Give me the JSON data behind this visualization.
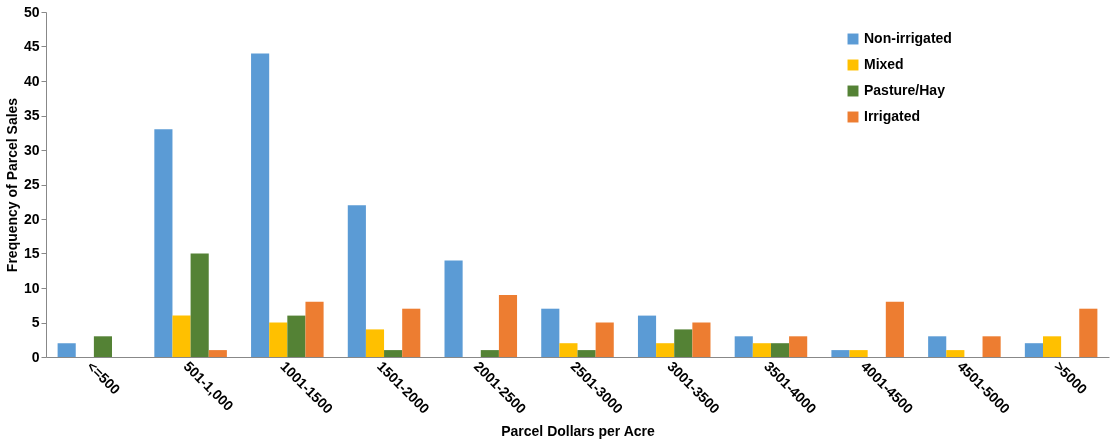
{
  "chart_data": {
    "type": "bar",
    "xlabel": "Parcel Dollars per Acre",
    "ylabel": "Frequency of Parcel Sales",
    "categories": [
      "<=500",
      "501-1,000",
      "1001-1500",
      "1501-2000",
      "2001-2500",
      "2501-3000",
      "3001-3500",
      "3501-4000",
      "4001-4500",
      "4501-5000",
      ">5000"
    ],
    "series": [
      {
        "name": "Non-irrigated",
        "color": "#5b9bd5",
        "values": [
          2,
          33,
          44,
          22,
          14,
          7,
          6,
          3,
          1,
          3,
          2
        ]
      },
      {
        "name": "Mixed",
        "color": "#ffc000",
        "values": [
          0,
          6,
          5,
          4,
          0,
          2,
          2,
          2,
          1,
          1,
          3
        ]
      },
      {
        "name": "Pasture/Hay",
        "color": "#548235",
        "values": [
          3,
          15,
          6,
          1,
          1,
          1,
          4,
          2,
          0,
          0,
          0
        ]
      },
      {
        "name": "Irrigated",
        "color": "#ed7d31",
        "values": [
          0,
          1,
          8,
          7,
          9,
          5,
          5,
          3,
          8,
          3,
          7
        ]
      }
    ],
    "ylim": [
      0,
      50
    ],
    "yticks": [
      0,
      5,
      10,
      15,
      20,
      25,
      30,
      35,
      40,
      45,
      50
    ],
    "grid": false,
    "legend": "top right"
  }
}
